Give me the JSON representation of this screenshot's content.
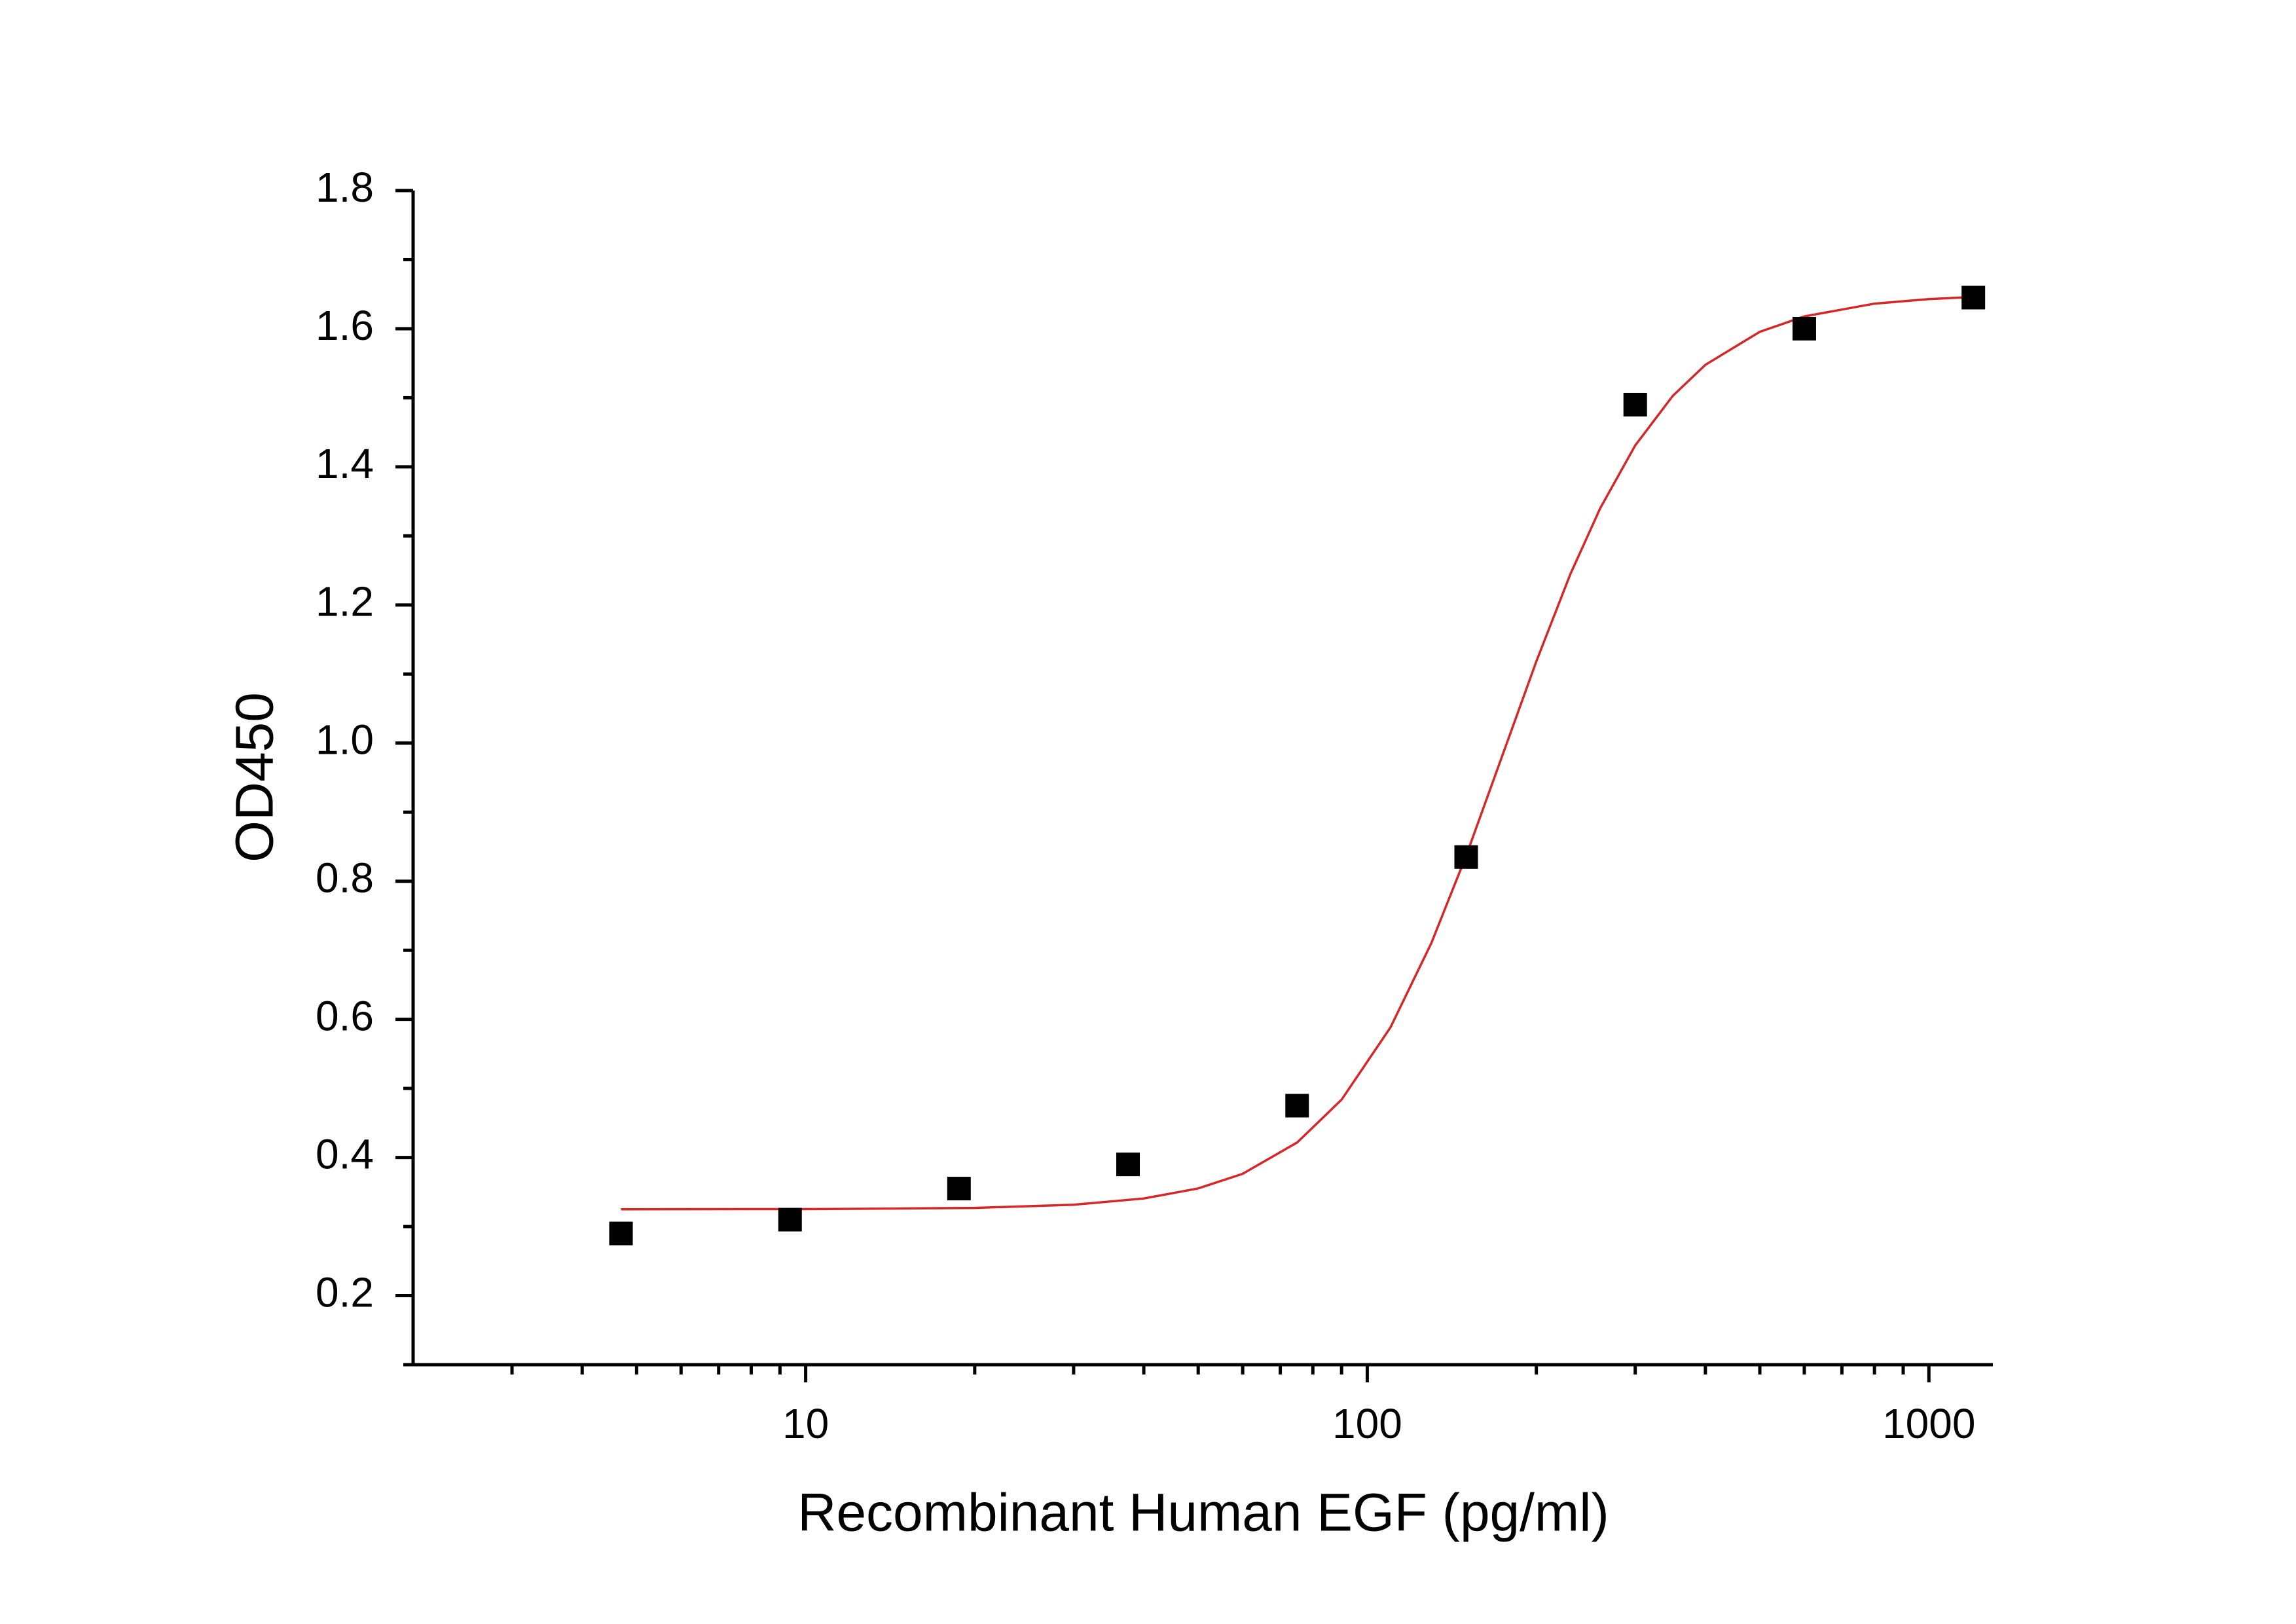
{
  "chart_data": {
    "type": "scatter",
    "x_label": "Recombinant Human EGF (pg/ml)",
    "y_label": "OD450",
    "x_scale": "log",
    "xlim": [
      2,
      1300
    ],
    "xticks": [
      10,
      100,
      1000
    ],
    "xminorticks": [
      3,
      4,
      5,
      6,
      7,
      8,
      9,
      20,
      30,
      40,
      50,
      60,
      70,
      80,
      90,
      200,
      300,
      400,
      500,
      600,
      700,
      800,
      900
    ],
    "ylim": [
      0.1,
      1.8
    ],
    "yticks": [
      0.2,
      0.4,
      0.6,
      0.8,
      {
        "value": 1,
        "label": "1.0"
      },
      1.2,
      1.4,
      1.6,
      1.8
    ],
    "yminorticks": [
      0.1,
      0.3,
      0.5,
      0.7,
      0.9,
      1.1,
      1.3,
      1.5,
      1.7
    ],
    "x": [
      4.69,
      9.38,
      18.75,
      37.5,
      75,
      150,
      300,
      600,
      1200
    ],
    "values": [
      0.29,
      0.31,
      0.355,
      0.39,
      0.475,
      0.835,
      1.49,
      1.6,
      1.645
    ],
    "color": "#000000",
    "fit_x": [
      4.69,
      10,
      20,
      30,
      40,
      50,
      60,
      75,
      90,
      110,
      130,
      150,
      175,
      200,
      230,
      260,
      300,
      350,
      400,
      500,
      600,
      800,
      1000,
      1200
    ],
    "fit_values": [
      0.325,
      0.3252,
      0.327,
      0.3316,
      0.3406,
      0.3552,
      0.3764,
      0.4217,
      0.4837,
      0.5884,
      0.7102,
      0.837,
      0.9875,
      1.1184,
      1.2448,
      1.3403,
      1.431,
      1.5028,
      1.5477,
      1.5955,
      1.6178,
      1.6363,
      1.6429,
      1.6459
    ],
    "fit_color": "#d62728"
  }
}
